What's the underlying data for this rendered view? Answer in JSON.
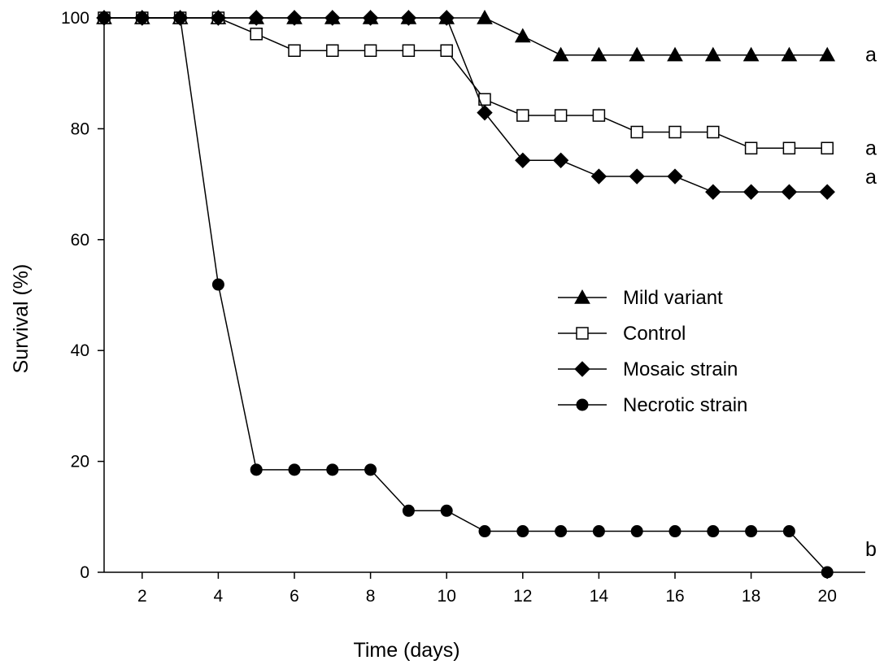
{
  "chart_data": {
    "type": "line",
    "title": "",
    "xlabel": "Time (days)",
    "ylabel": "Survival (%)",
    "xlim": [
      1,
      21
    ],
    "ylim": [
      0,
      100
    ],
    "x_ticks": [
      2,
      4,
      6,
      8,
      10,
      12,
      14,
      16,
      18,
      20
    ],
    "y_ticks": [
      0,
      20,
      40,
      60,
      80,
      100
    ],
    "grid": false,
    "legend_position": "center-right",
    "x": [
      1,
      2,
      3,
      4,
      5,
      6,
      7,
      8,
      9,
      10,
      11,
      12,
      13,
      14,
      15,
      16,
      17,
      18,
      19,
      20
    ],
    "series": [
      {
        "name": "Mild variant",
        "marker": "filled-triangle",
        "values": [
          100,
          100,
          100,
          100,
          100,
          100,
          100,
          100,
          100,
          100,
          100,
          96.7,
          93.3,
          93.3,
          93.3,
          93.3,
          93.3,
          93.3,
          93.3,
          93.3
        ],
        "group_letter": "a"
      },
      {
        "name": "Control",
        "marker": "open-square",
        "values": [
          100,
          100,
          100,
          100,
          97.1,
          94.1,
          94.1,
          94.1,
          94.1,
          94.1,
          85.3,
          82.4,
          82.4,
          82.4,
          79.4,
          79.4,
          79.4,
          76.5,
          76.5,
          76.5
        ],
        "group_letter": "a"
      },
      {
        "name": "Mosaic strain",
        "marker": "filled-diamond",
        "values": [
          100,
          100,
          100,
          100,
          100,
          100,
          100,
          100,
          100,
          100,
          82.9,
          74.3,
          74.3,
          71.4,
          71.4,
          71.4,
          68.6,
          68.6,
          68.6,
          68.6
        ],
        "group_letter": "a"
      },
      {
        "name": "Necrotic strain",
        "marker": "filled-circle",
        "values": [
          100,
          100,
          100,
          51.9,
          18.5,
          18.5,
          18.5,
          18.5,
          11.1,
          11.1,
          7.4,
          7.4,
          7.4,
          7.4,
          7.4,
          7.4,
          7.4,
          7.4,
          7.4,
          0
        ],
        "group_letter": "b"
      }
    ],
    "colors": {
      "line": "#000000",
      "marker_fill": "#000000",
      "open_marker_fill": "#ffffff"
    }
  }
}
